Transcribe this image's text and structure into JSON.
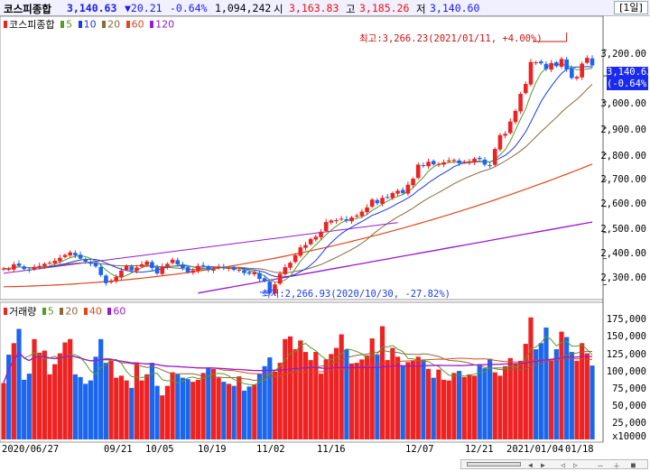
{
  "header": {
    "name": "코스피종합",
    "price": "3,140.63",
    "change": "▼20.21",
    "pct": "-0.64%",
    "volume": "1,094,242",
    "open_label": "시",
    "open": "3,163.83",
    "high_label": "고",
    "high": "3,185.26",
    "low_label": "저",
    "low": "3,140.60",
    "period": "[1일]"
  },
  "price_legend": {
    "title": "코스피종합",
    "ma": [
      {
        "label": "5",
        "color": "#5a9a2a"
      },
      {
        "label": "10",
        "color": "#1a3aee"
      },
      {
        "label": "20",
        "color": "#8a6a3a"
      },
      {
        "label": "60",
        "color": "#e4451a"
      },
      {
        "label": "120",
        "color": "#9a1ad0"
      }
    ]
  },
  "volume_legend": {
    "title": "거래량",
    "ma": [
      {
        "label": "5",
        "color": "#5a9a2a"
      },
      {
        "label": "20",
        "color": "#8a6a3a"
      },
      {
        "label": "40",
        "color": "#e4451a"
      },
      {
        "label": "60",
        "color": "#9a1ad0"
      }
    ]
  },
  "annotations": {
    "high": "최고:3,266.23(2021/01/11, +4.00%)",
    "low": "최저:2,266.93(2020/10/30, -27.82%)",
    "current_price": "3,140.63",
    "current_pct": "(-0.64%)"
  },
  "colors": {
    "up": "#ee2222",
    "down": "#1a66ee",
    "axis_highlight": "#1a2aee"
  },
  "chart_data": [
    {
      "type": "candlestick",
      "title": "코스피종합",
      "y_ticks": [
        "3,200.00",
        "3,100.00",
        "3,000.00",
        "2,900.00",
        "2,800.00",
        "2,700.00",
        "2,600.00",
        "2,500.00",
        "2,400.00",
        "2,300.00"
      ],
      "ylim": [
        2250,
        3280
      ],
      "x_ticks": [
        "2020/06/27",
        "09/21",
        "10/05",
        "10/19",
        "11/02",
        "11/16",
        "12/07",
        "12/21",
        "2021/01/04",
        "01/18"
      ],
      "close": [
        2362,
        2360,
        2378,
        2372,
        2360,
        2356,
        2368,
        2372,
        2380,
        2384,
        2392,
        2403,
        2414,
        2424,
        2412,
        2400,
        2388,
        2380,
        2370,
        2337,
        2306,
        2315,
        2330,
        2354,
        2372,
        2355,
        2366,
        2378,
        2389,
        2364,
        2343,
        2370,
        2380,
        2396,
        2378,
        2364,
        2348,
        2355,
        2372,
        2372,
        2356,
        2360,
        2370,
        2364,
        2364,
        2357,
        2357,
        2345,
        2342,
        2347,
        2322,
        2314,
        2268,
        2301,
        2342,
        2367,
        2384,
        2413,
        2443,
        2452,
        2475,
        2484,
        2503,
        2540,
        2546,
        2547,
        2553,
        2545,
        2558,
        2565,
        2580,
        2596,
        2626,
        2612,
        2633,
        2634,
        2651,
        2660,
        2651,
        2683,
        2706,
        2760,
        2756,
        2771,
        2761,
        2762,
        2769,
        2776,
        2778,
        2765,
        2768,
        2770,
        2783,
        2781,
        2760,
        2756,
        2820,
        2873,
        2878,
        2925,
        2966,
        3031,
        3069,
        3153,
        3152,
        3148,
        3126,
        3149,
        3137,
        3165,
        3125,
        3092,
        3096,
        3147,
        3169,
        3140
      ],
      "ma_labels": [
        "5",
        "10",
        "20",
        "60",
        "120"
      ],
      "volume": {
        "title": "거래량",
        "y_ticks": [
          "175,000",
          "150,000",
          "125,000",
          "100,000",
          "75,000",
          "50,000",
          "25,000"
        ],
        "unit": "x10000",
        "ylim": [
          0,
          185000
        ],
        "values": [
          83000,
          125000,
          142000,
          163000,
          88000,
          97000,
          148000,
          128000,
          131000,
          96000,
          111000,
          127000,
          143000,
          148000,
          96000,
          92000,
          82000,
          87000,
          122000,
          148000,
          113000,
          116000,
          91000,
          94000,
          87000,
          76000,
          113000,
          87000,
          96000,
          113000,
          79000,
          65000,
          79000,
          99000,
          96000,
          91000,
          89000,
          85000,
          88000,
          98000,
          106000,
          104000,
          91000,
          85000,
          82000,
          79000,
          93000,
          72000,
          78000,
          81000,
          97000,
          108000,
          121000,
          100000,
          113000,
          148000,
          152000,
          133000,
          146000,
          129000,
          117000,
          129000,
          97000,
          118000,
          126000,
          135000,
          155000,
          133000,
          112000,
          113000,
          118000,
          124000,
          149000,
          125000,
          167000,
          117000,
          135000,
          122000,
          108000,
          114000,
          116000,
          122000,
          118000,
          104000,
          91000,
          103000,
          88000,
          87000,
          98000,
          101000,
          92000,
          96000,
          94000,
          111000,
          105000,
          119000,
          99000,
          94000,
          108000,
          120000,
          112000,
          116000,
          141000,
          180000,
          133000,
          142000,
          165000,
          116000,
          133000,
          159000,
          151000,
          129000,
          116000,
          142000,
          127000,
          109000
        ]
      }
    }
  ]
}
